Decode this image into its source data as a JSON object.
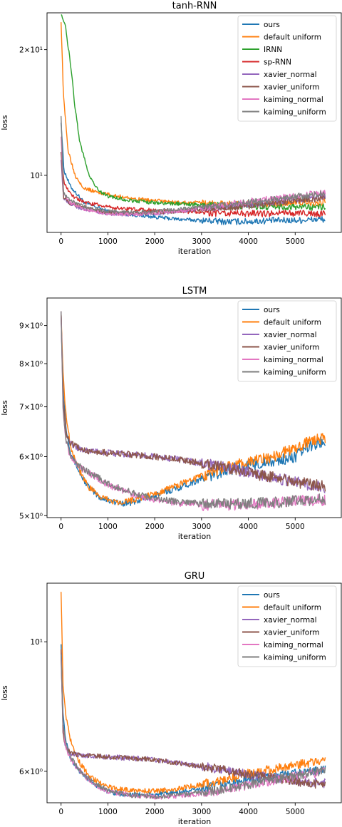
{
  "colors": {
    "ours": "#1f77b4",
    "default uniform": "#ff7f0e",
    "IRNN": "#2ca02c",
    "sp-RNN": "#d62728",
    "xavier_normal": "#9467bd",
    "xavier_uniform": "#8c564b",
    "kaiming_normal": "#e377c2",
    "kaiming_uniform": "#7f7f7f"
  },
  "chart_data": [
    {
      "type": "line",
      "title": "tanh-RNN",
      "xlabel": "iteration",
      "ylabel": "loss",
      "yscale": "log",
      "xlim": [
        -300,
        6000
      ],
      "ylim": [
        7.3,
        24.5
      ],
      "xticks": [
        0,
        1000,
        2000,
        3000,
        4000,
        5000
      ],
      "xtick_labels": [
        "0",
        "1000",
        "2000",
        "3000",
        "4000",
        "5000"
      ],
      "yticks": [
        10,
        20
      ],
      "ytick_labels": [
        "10¹",
        "2×10¹"
      ],
      "legend_position": "upper-right",
      "series": [
        {
          "name": "ours",
          "x": [
            0,
            60,
            200,
            500,
            1000,
            1500,
            2000,
            2500,
            3000,
            3500,
            4000,
            4500,
            5000,
            5500,
            5650
          ],
          "values": [
            13.5,
            10.3,
            9.4,
            8.6,
            8.2,
            8.05,
            7.95,
            7.85,
            7.8,
            7.75,
            7.75,
            7.8,
            7.8,
            7.85,
            7.85
          ]
        },
        {
          "name": "default uniform",
          "x": [
            0,
            50,
            150,
            300,
            500,
            800,
            1000,
            1500,
            2000,
            2500,
            3000,
            3500,
            4000,
            4500,
            5000,
            5500,
            5650
          ],
          "values": [
            23.5,
            15.5,
            11.5,
            10.0,
            9.3,
            9.1,
            9.0,
            8.8,
            8.7,
            8.6,
            8.6,
            8.55,
            8.55,
            8.55,
            8.6,
            8.6,
            8.65
          ]
        },
        {
          "name": "IRNN",
          "x": [
            0,
            100,
            200,
            300,
            400,
            600,
            800,
            1000,
            1500,
            2000,
            2500,
            3000,
            3500,
            4000,
            4500,
            5000,
            5500,
            5650
          ],
          "values": [
            24.5,
            22.5,
            18.5,
            14.5,
            12.0,
            10.0,
            9.2,
            8.9,
            8.7,
            8.6,
            8.55,
            8.5,
            8.45,
            8.45,
            8.4,
            8.4,
            8.4,
            8.4
          ]
        },
        {
          "name": "sp-RNN",
          "x": [
            0,
            60,
            200,
            500,
            800,
            1000,
            1200,
            1500,
            2000,
            2500,
            3000,
            3500,
            4000,
            4500,
            5000,
            5500,
            5650
          ],
          "values": [
            11.5,
            9.6,
            9.0,
            8.6,
            8.5,
            8.4,
            8.35,
            8.3,
            8.25,
            8.2,
            8.15,
            8.1,
            8.1,
            8.1,
            8.1,
            8.1,
            8.1
          ]
        },
        {
          "name": "xavier_normal",
          "x": [
            0,
            50,
            200,
            500,
            1000,
            1500,
            2000,
            2500,
            3000,
            3500,
            4000,
            4500,
            5000,
            5500,
            5650
          ],
          "values": [
            11.0,
            8.8,
            8.5,
            8.3,
            8.1,
            8.05,
            8.1,
            8.2,
            8.3,
            8.4,
            8.5,
            8.6,
            8.75,
            8.85,
            8.9
          ]
        },
        {
          "name": "xavier_uniform",
          "x": [
            0,
            50,
            200,
            500,
            1000,
            1500,
            2000,
            2500,
            3000,
            3500,
            4000,
            4500,
            5000,
            5500,
            5650
          ],
          "values": [
            11.5,
            8.9,
            8.55,
            8.35,
            8.15,
            8.1,
            8.15,
            8.2,
            8.3,
            8.35,
            8.45,
            8.55,
            8.7,
            8.8,
            8.85
          ]
        },
        {
          "name": "kaiming_normal",
          "x": [
            0,
            50,
            200,
            500,
            1000,
            1500,
            2000,
            2500,
            3000,
            3500,
            4000,
            4500,
            5000,
            5500,
            5650
          ],
          "values": [
            12.5,
            9.0,
            8.6,
            8.3,
            8.1,
            8.05,
            8.1,
            8.2,
            8.35,
            8.5,
            8.65,
            8.8,
            8.95,
            9.05,
            9.1
          ]
        },
        {
          "name": "kaiming_uniform",
          "x": [
            0,
            50,
            200,
            500,
            1000,
            1500,
            2000,
            2500,
            3000,
            3500,
            4000,
            4500,
            5000,
            5500,
            5650
          ],
          "values": [
            14.0,
            9.1,
            8.7,
            8.4,
            8.2,
            8.15,
            8.2,
            8.3,
            8.4,
            8.5,
            8.6,
            8.75,
            8.9,
            9.0,
            9.05
          ]
        }
      ]
    },
    {
      "type": "line",
      "title": "LSTM",
      "xlabel": "iteration",
      "ylabel": "loss",
      "yscale": "log",
      "xlim": [
        -300,
        6000
      ],
      "ylim": [
        4.97,
        9.8
      ],
      "xticks": [
        0,
        1000,
        2000,
        3000,
        4000,
        5000
      ],
      "xtick_labels": [
        "0",
        "1000",
        "2000",
        "3000",
        "4000",
        "5000"
      ],
      "yticks": [
        5,
        6,
        7,
        8,
        9
      ],
      "ytick_labels": [
        "5×10⁰",
        "6×10⁰",
        "7×10⁰",
        "8×10⁰",
        "9×10⁰"
      ],
      "legend_position": "upper-right",
      "series": [
        {
          "name": "ours",
          "x": [
            0,
            40,
            100,
            200,
            400,
            600,
            800,
            1000,
            1200,
            1400,
            1600,
            1800,
            2000,
            2500,
            3000,
            3500,
            4000,
            4500,
            5000,
            5300,
            5650
          ],
          "values": [
            9.5,
            7.5,
            6.6,
            6.1,
            5.7,
            5.45,
            5.3,
            5.25,
            5.2,
            5.2,
            5.22,
            5.28,
            5.32,
            5.45,
            5.6,
            5.75,
            5.85,
            5.9,
            6.0,
            6.2,
            6.3
          ]
        },
        {
          "name": "default uniform",
          "x": [
            0,
            40,
            100,
            200,
            400,
            600,
            800,
            1000,
            1200,
            1400,
            1600,
            1800,
            2000,
            2500,
            3000,
            3500,
            4000,
            4500,
            5000,
            5300,
            5650
          ],
          "values": [
            9.5,
            7.8,
            6.9,
            6.2,
            5.75,
            5.45,
            5.32,
            5.25,
            5.22,
            5.23,
            5.26,
            5.3,
            5.35,
            5.5,
            5.65,
            5.8,
            5.9,
            6.0,
            6.15,
            6.3,
            6.35
          ]
        },
        {
          "name": "xavier_normal",
          "x": [
            0,
            40,
            100,
            200,
            400,
            600,
            1000,
            1500,
            2000,
            2500,
            3000,
            3500,
            4000,
            4500,
            5000,
            5650
          ],
          "values": [
            9.5,
            7.2,
            6.5,
            6.25,
            6.15,
            6.1,
            6.07,
            6.04,
            6.0,
            5.95,
            5.88,
            5.8,
            5.72,
            5.63,
            5.55,
            5.45
          ]
        },
        {
          "name": "xavier_uniform",
          "x": [
            0,
            40,
            100,
            200,
            400,
            600,
            1000,
            1500,
            2000,
            2500,
            3000,
            3500,
            4000,
            4500,
            5000,
            5650
          ],
          "values": [
            9.5,
            7.2,
            6.5,
            6.25,
            6.15,
            6.1,
            6.07,
            6.04,
            6.0,
            5.95,
            5.88,
            5.8,
            5.72,
            5.63,
            5.55,
            5.47
          ]
        },
        {
          "name": "kaiming_normal",
          "x": [
            0,
            40,
            100,
            200,
            400,
            600,
            800,
            1000,
            1500,
            2000,
            2500,
            3000,
            3500,
            4000,
            4500,
            5000,
            5650
          ],
          "values": [
            9.5,
            7.0,
            6.3,
            6.0,
            5.8,
            5.7,
            5.6,
            5.5,
            5.35,
            5.25,
            5.2,
            5.17,
            5.17,
            5.18,
            5.2,
            5.22,
            5.25
          ]
        },
        {
          "name": "kaiming_uniform",
          "x": [
            0,
            40,
            100,
            200,
            400,
            600,
            800,
            1000,
            1500,
            2000,
            2500,
            3000,
            3500,
            4000,
            4500,
            5000,
            5650
          ],
          "values": [
            9.5,
            7.0,
            6.3,
            6.02,
            5.82,
            5.72,
            5.62,
            5.52,
            5.37,
            5.27,
            5.22,
            5.19,
            5.19,
            5.2,
            5.21,
            5.23,
            5.26
          ]
        }
      ]
    },
    {
      "type": "line",
      "title": "GRU",
      "xlabel": "iteration",
      "ylabel": "loss",
      "yscale": "log",
      "xlim": [
        -300,
        6000
      ],
      "ylim": [
        5.3,
        12.6
      ],
      "xticks": [
        0,
        1000,
        2000,
        3000,
        4000,
        5000
      ],
      "xtick_labels": [
        "0",
        "1000",
        "2000",
        "3000",
        "4000",
        "5000"
      ],
      "yticks": [
        6,
        10
      ],
      "ytick_labels": [
        "6×10⁰",
        "10¹"
      ],
      "legend_position": "upper-right",
      "series": [
        {
          "name": "ours",
          "x": [
            0,
            40,
            100,
            200,
            400,
            600,
            800,
            1000,
            1200,
            1500,
            2000,
            2500,
            3000,
            3500,
            4000,
            4500,
            5000,
            5650
          ],
          "values": [
            10.0,
            7.5,
            6.8,
            6.3,
            6.0,
            5.8,
            5.65,
            5.55,
            5.5,
            5.47,
            5.47,
            5.52,
            5.6,
            5.7,
            5.8,
            5.88,
            5.95,
            6.05
          ]
        },
        {
          "name": "default uniform",
          "x": [
            0,
            40,
            100,
            200,
            400,
            600,
            800,
            1000,
            1200,
            1500,
            2000,
            2500,
            3000,
            3500,
            4000,
            4500,
            5000,
            5650
          ],
          "values": [
            12.3,
            8.5,
            7.5,
            6.8,
            6.2,
            5.9,
            5.75,
            5.65,
            5.6,
            5.57,
            5.55,
            5.6,
            5.7,
            5.8,
            5.95,
            6.05,
            6.15,
            6.25
          ]
        },
        {
          "name": "xavier_normal",
          "x": [
            0,
            40,
            100,
            200,
            400,
            600,
            1000,
            1500,
            2000,
            2500,
            3000,
            3500,
            4000,
            4500,
            5000,
            5650
          ],
          "values": [
            9.8,
            7.0,
            6.6,
            6.45,
            6.4,
            6.38,
            6.35,
            6.32,
            6.28,
            6.2,
            6.12,
            6.03,
            5.93,
            5.85,
            5.78,
            5.72
          ]
        },
        {
          "name": "xavier_uniform",
          "x": [
            0,
            40,
            100,
            200,
            400,
            600,
            1000,
            1500,
            2000,
            2500,
            3000,
            3500,
            4000,
            4500,
            5000,
            5650
          ],
          "values": [
            9.8,
            7.0,
            6.6,
            6.45,
            6.4,
            6.38,
            6.35,
            6.32,
            6.28,
            6.2,
            6.12,
            6.03,
            5.93,
            5.85,
            5.76,
            5.68
          ]
        },
        {
          "name": "kaiming_normal",
          "x": [
            0,
            40,
            100,
            200,
            400,
            600,
            800,
            1000,
            1500,
            2000,
            2500,
            3000,
            3500,
            4000,
            4500,
            5000,
            5650
          ],
          "values": [
            9.5,
            7.2,
            6.6,
            6.3,
            6.0,
            5.8,
            5.65,
            5.55,
            5.45,
            5.42,
            5.45,
            5.5,
            5.58,
            5.68,
            5.78,
            5.88,
            6.0
          ]
        },
        {
          "name": "kaiming_uniform",
          "x": [
            0,
            40,
            100,
            200,
            400,
            600,
            800,
            1000,
            1500,
            2000,
            2500,
            3000,
            3500,
            4000,
            4500,
            5000,
            5650
          ],
          "values": [
            9.6,
            7.3,
            6.7,
            6.35,
            6.02,
            5.82,
            5.67,
            5.57,
            5.46,
            5.43,
            5.46,
            5.52,
            5.6,
            5.7,
            5.8,
            5.9,
            6.02
          ]
        }
      ]
    }
  ]
}
